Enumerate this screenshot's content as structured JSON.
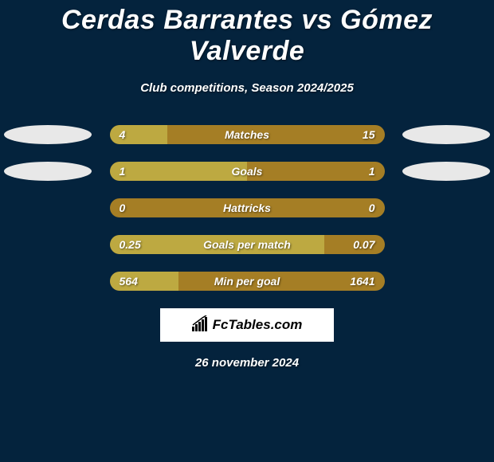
{
  "title": "Cerdas Barrantes vs Gómez Valverde",
  "subtitle": "Club competitions, Season 2024/2025",
  "date": "26 november 2024",
  "logo_text": "FcTables.com",
  "colors": {
    "background": "#04233d",
    "bar_bg": "#a57e25",
    "bar_fill": "#bda941",
    "oval": "#e8e8e8",
    "text": "#ffffff",
    "logo_bg": "#ffffff",
    "logo_text": "#000000"
  },
  "rows": [
    {
      "label": "Matches",
      "left": "4",
      "right": "15",
      "fill_pct": 21,
      "show_ovals": true
    },
    {
      "label": "Goals",
      "left": "1",
      "right": "1",
      "fill_pct": 50,
      "show_ovals": true
    },
    {
      "label": "Hattricks",
      "left": "0",
      "right": "0",
      "fill_pct": 0,
      "show_ovals": false
    },
    {
      "label": "Goals per match",
      "left": "0.25",
      "right": "0.07",
      "fill_pct": 78,
      "show_ovals": false
    },
    {
      "label": "Min per goal",
      "left": "564",
      "right": "1641",
      "fill_pct": 25,
      "show_ovals": false
    }
  ]
}
